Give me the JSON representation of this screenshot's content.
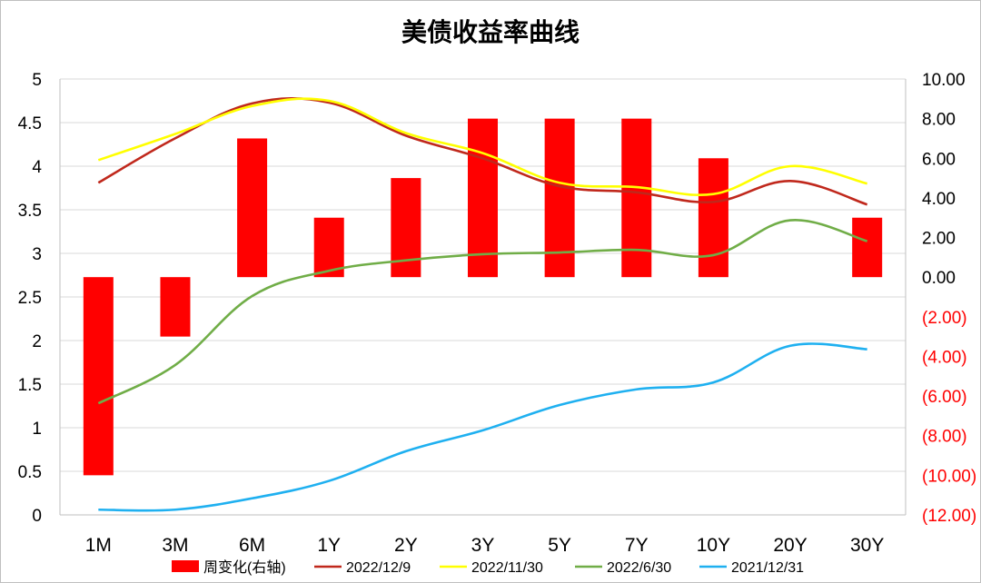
{
  "chart_data": {
    "type": "bar+line",
    "title": "美债收益率曲线",
    "categories": [
      "1M",
      "3M",
      "6M",
      "1Y",
      "2Y",
      "3Y",
      "5Y",
      "7Y",
      "10Y",
      "20Y",
      "30Y"
    ],
    "left_axis": {
      "ylim": [
        0,
        5
      ],
      "ticks": [
        "0",
        "0.5",
        "1",
        "1.5",
        "2",
        "2.5",
        "3",
        "3.5",
        "4",
        "4.5",
        "5"
      ]
    },
    "right_axis": {
      "ylim": [
        -12,
        10
      ],
      "ticks": [
        "(12.00)",
        "(10.00)",
        "(8.00)",
        "(6.00)",
        "(4.00)",
        "(2.00)",
        "0.00",
        "2.00",
        "4.00",
        "6.00",
        "8.00",
        "10.00"
      ],
      "negative_color": "#ff0000"
    },
    "bars": {
      "name": "周变化(右轴)",
      "axis": "right",
      "color": "#ff0000",
      "values": [
        -10,
        -3,
        7,
        3,
        5,
        8,
        8,
        8,
        6,
        null,
        3
      ]
    },
    "series": [
      {
        "name": "2022/12/9",
        "color": "#c0281c",
        "values": [
          3.81,
          4.32,
          4.72,
          4.73,
          4.35,
          4.09,
          3.77,
          3.7,
          3.59,
          3.83,
          3.56
        ]
      },
      {
        "name": "2022/11/30",
        "color": "#ffff00",
        "values": [
          4.07,
          4.37,
          4.69,
          4.75,
          4.38,
          4.15,
          3.81,
          3.76,
          3.68,
          4.0,
          3.8
        ]
      },
      {
        "name": "2022/6/30",
        "color": "#70ad47",
        "values": [
          1.28,
          1.72,
          2.51,
          2.8,
          2.92,
          2.99,
          3.01,
          3.04,
          2.98,
          3.38,
          3.14
        ]
      },
      {
        "name": "2021/12/31",
        "color": "#1fb0f0",
        "values": [
          0.06,
          0.06,
          0.19,
          0.39,
          0.73,
          0.97,
          1.26,
          1.44,
          1.52,
          1.94,
          1.9
        ]
      }
    ],
    "grid": true,
    "legend_position": "bottom"
  }
}
